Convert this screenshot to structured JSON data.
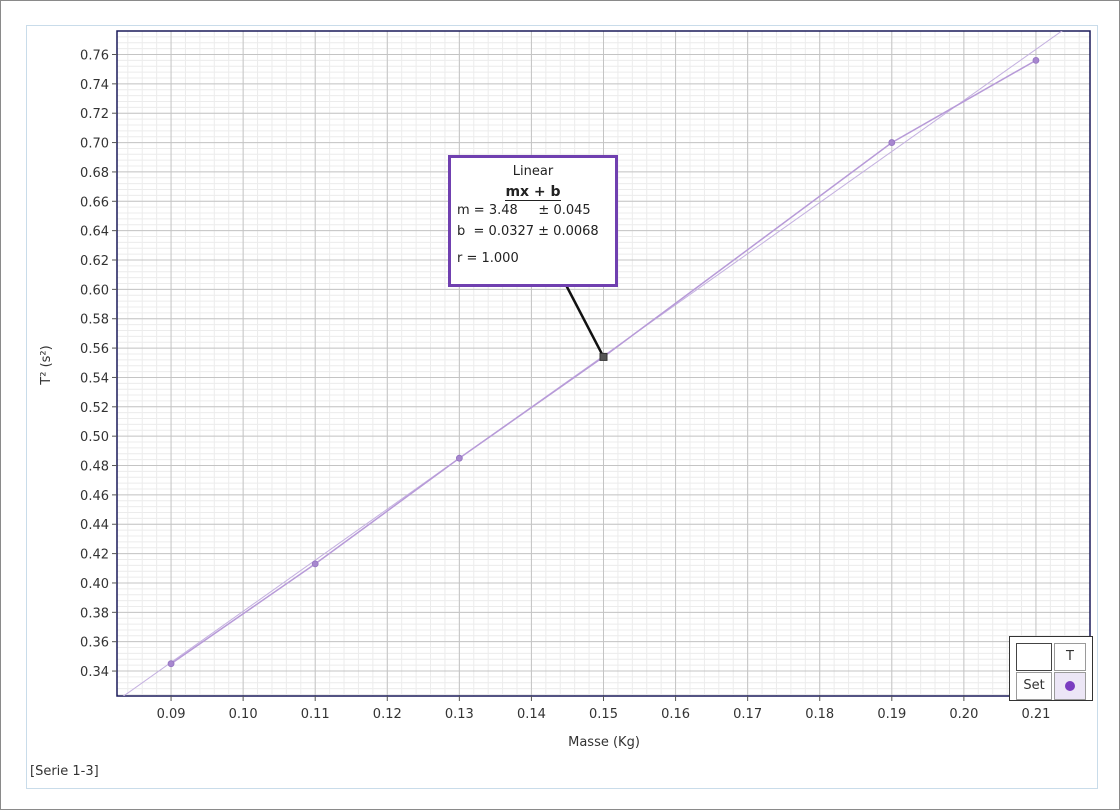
{
  "chart_data": {
    "type": "scatter",
    "xlabel": "Masse (Kg)",
    "ylabel": "T² (s²)",
    "xlim": [
      0.0825,
      0.2175
    ],
    "ylim": [
      0.323,
      0.776
    ],
    "grid": true,
    "x_ticks": [
      "0.09",
      "0.10",
      "0.11",
      "0.12",
      "0.13",
      "0.14",
      "0.15",
      "0.16",
      "0.17",
      "0.18",
      "0.19",
      "0.20",
      "0.21"
    ],
    "y_ticks": [
      "0.34",
      "0.36",
      "0.38",
      "0.40",
      "0.42",
      "0.44",
      "0.46",
      "0.48",
      "0.50",
      "0.52",
      "0.54",
      "0.56",
      "0.58",
      "0.60",
      "0.62",
      "0.64",
      "0.66",
      "0.68",
      "0.70",
      "0.72",
      "0.74",
      "0.76"
    ],
    "series": [
      {
        "name": "T",
        "color": "#b79ad8",
        "x": [
          0.09,
          0.11,
          0.13,
          0.15,
          0.19,
          0.21
        ],
        "y": [
          0.345,
          0.413,
          0.485,
          0.554,
          0.7,
          0.756
        ]
      }
    ],
    "fit": {
      "type": "Linear",
      "equation": "mx + b",
      "m": 3.48,
      "b": 0.0327,
      "m_text": "m = 3.48     ± 0.045",
      "b_text": "b  = 0.0327 ± 0.0068",
      "r_text": "r = 1.000",
      "anchor_x": 0.15,
      "anchor_y": 0.554,
      "color": "#c4b0e0"
    }
  },
  "series_label": "[Serie 1-3]",
  "legend": {
    "column_label": "T",
    "row_label": "Set",
    "marker_color": "#7a3cc0"
  }
}
